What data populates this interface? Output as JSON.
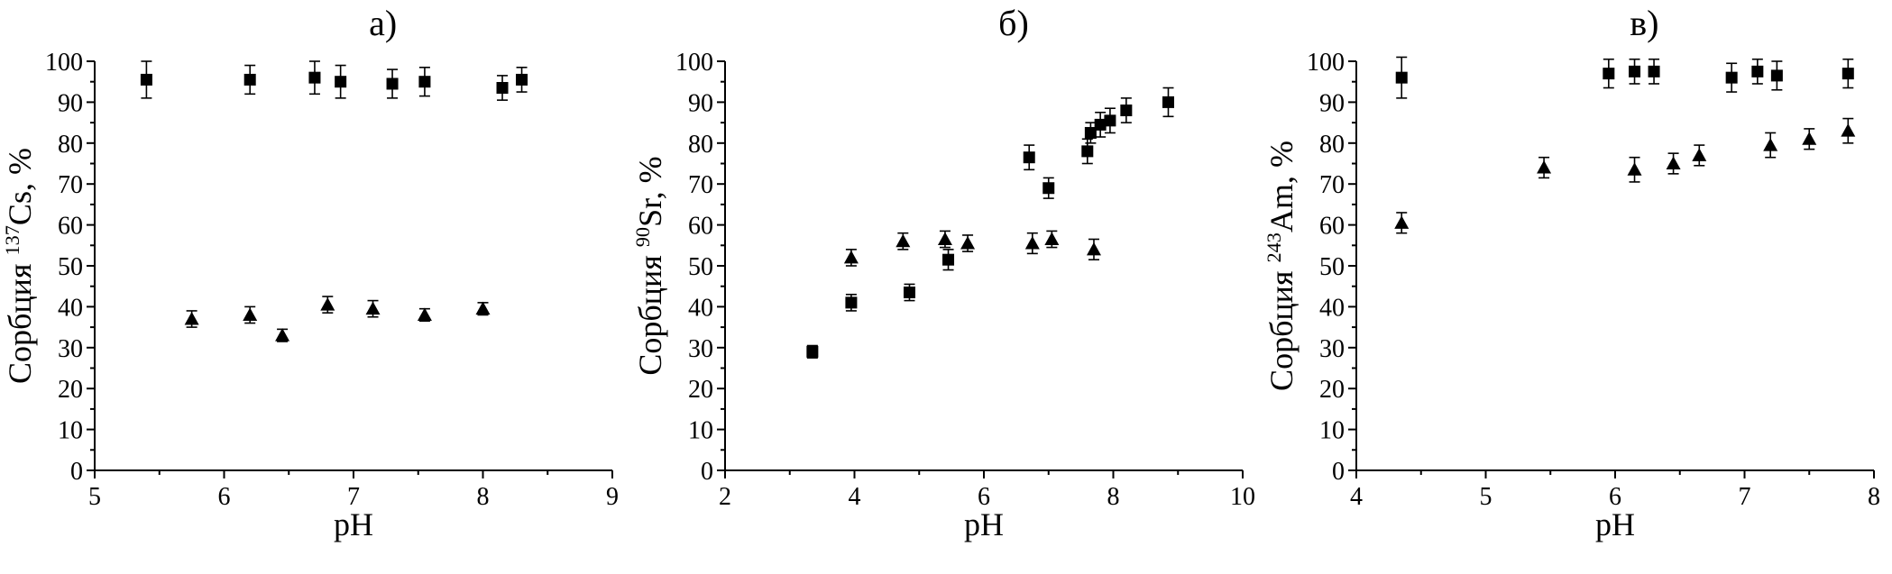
{
  "colors": {
    "foreground": "#000000",
    "background": "#ffffff",
    "marker": "#000000"
  },
  "chart_data": [
    {
      "type": "scatter",
      "panel_label": "а)",
      "xlabel": "pH",
      "ylabel": "Сорбция ¹³⁷Cs, %",
      "ylabel_prefix": "Сорбция ",
      "isotope_mass": "137",
      "ylabel_rest": "Cs, %",
      "xlim": [
        5,
        9
      ],
      "xticks": [
        5,
        6,
        7,
        8,
        9
      ],
      "x_minor_step": 0.5,
      "ylim": [
        0,
        100
      ],
      "yticks": [
        0,
        10,
        20,
        30,
        40,
        50,
        60,
        70,
        80,
        90,
        100
      ],
      "y_minor_step": 5,
      "grid": false,
      "legend": "none",
      "series": [
        {
          "name": "filled squares",
          "marker": "square",
          "points": [
            [
              5.4,
              95.5,
              4.5
            ],
            [
              6.2,
              95.5,
              3.5
            ],
            [
              6.7,
              96,
              4
            ],
            [
              6.9,
              95,
              4
            ],
            [
              7.3,
              94.5,
              3.5
            ],
            [
              7.55,
              95,
              3.5
            ],
            [
              8.15,
              93.5,
              3
            ],
            [
              8.3,
              95.5,
              3
            ]
          ]
        },
        {
          "name": "filled triangles",
          "marker": "triangle",
          "points": [
            [
              5.75,
              37,
              2
            ],
            [
              6.2,
              38,
              2
            ],
            [
              6.45,
              33,
              1.5
            ],
            [
              6.8,
              40.5,
              2
            ],
            [
              7.15,
              39.5,
              2
            ],
            [
              7.55,
              38,
              1.5
            ],
            [
              8.0,
              39.5,
              1.5
            ]
          ]
        }
      ]
    },
    {
      "type": "scatter",
      "panel_label": "б)",
      "xlabel": "pH",
      "ylabel": "Сорбция ⁹⁰Sr, %",
      "ylabel_prefix": "Сорбция ",
      "isotope_mass": "90",
      "ylabel_rest": "Sr, %",
      "xlim": [
        2,
        10
      ],
      "xticks": [
        2,
        4,
        6,
        8,
        10
      ],
      "x_minor_step": 1,
      "ylim": [
        0,
        100
      ],
      "yticks": [
        0,
        10,
        20,
        30,
        40,
        50,
        60,
        70,
        80,
        90,
        100
      ],
      "y_minor_step": 5,
      "grid": false,
      "legend": "none",
      "series": [
        {
          "name": "filled squares",
          "marker": "square",
          "points": [
            [
              3.35,
              29,
              1.5
            ],
            [
              3.95,
              41,
              2
            ],
            [
              4.85,
              43.5,
              2
            ],
            [
              5.45,
              51.5,
              2.5
            ],
            [
              6.7,
              76.5,
              3
            ],
            [
              7.0,
              69,
              2.5
            ],
            [
              7.6,
              78,
              3
            ],
            [
              7.65,
              82.5,
              2.5
            ],
            [
              7.8,
              84.5,
              3
            ],
            [
              7.95,
              85.5,
              3
            ],
            [
              8.2,
              88,
              3
            ],
            [
              8.85,
              90,
              3.5
            ]
          ]
        },
        {
          "name": "filled triangles",
          "marker": "triangle",
          "points": [
            [
              3.95,
              52,
              2
            ],
            [
              4.75,
              56,
              2
            ],
            [
              5.4,
              56.5,
              2
            ],
            [
              5.75,
              55.5,
              2
            ],
            [
              6.75,
              55.5,
              2.5
            ],
            [
              7.05,
              56.5,
              2
            ],
            [
              7.7,
              54,
              2.5
            ]
          ]
        }
      ]
    },
    {
      "type": "scatter",
      "panel_label": "в)",
      "xlabel": "pH",
      "ylabel": "Сорбция ²⁴³Am, %",
      "ylabel_prefix": "Сорбция ",
      "isotope_mass": "243",
      "ylabel_rest": "Am, %",
      "xlim": [
        4,
        8
      ],
      "xticks": [
        4,
        5,
        6,
        7,
        8
      ],
      "x_minor_step": 0.5,
      "ylim": [
        0,
        100
      ],
      "yticks": [
        0,
        10,
        20,
        30,
        40,
        50,
        60,
        70,
        80,
        90,
        100
      ],
      "y_minor_step": 5,
      "grid": false,
      "legend": "none",
      "series": [
        {
          "name": "filled squares",
          "marker": "square",
          "points": [
            [
              4.35,
              96,
              5
            ],
            [
              5.95,
              97,
              3.5
            ],
            [
              6.15,
              97.5,
              3
            ],
            [
              6.3,
              97.5,
              3
            ],
            [
              6.9,
              96,
              3.5
            ],
            [
              7.1,
              97.5,
              3
            ],
            [
              7.25,
              96.5,
              3.5
            ],
            [
              7.8,
              97,
              3.5
            ]
          ]
        },
        {
          "name": "filled triangles",
          "marker": "triangle",
          "points": [
            [
              4.35,
              60.5,
              2.5
            ],
            [
              5.45,
              74,
              2.5
            ],
            [
              6.15,
              73.5,
              3
            ],
            [
              6.45,
              75,
              2.5
            ],
            [
              6.65,
              77,
              2.5
            ],
            [
              7.2,
              79.5,
              3
            ],
            [
              7.5,
              81,
              2.5
            ],
            [
              7.8,
              83,
              3
            ]
          ]
        }
      ]
    }
  ]
}
